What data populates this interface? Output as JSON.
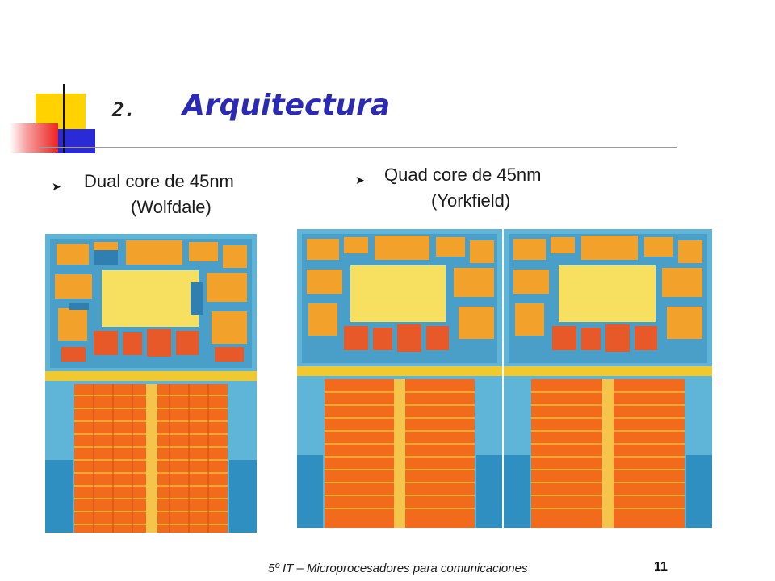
{
  "title": {
    "number": "2.",
    "text": "Arquitectura"
  },
  "bullets": [
    {
      "line1": "Dual core de 45nm",
      "line2": "(Wolfdale)"
    },
    {
      "line1": "Quad core de 45nm",
      "line2": "(Yorkfield)"
    }
  ],
  "images": [
    {
      "name": "Wolfdale dual core die",
      "icon": "die-photo"
    },
    {
      "name": "Yorkfield quad core die",
      "icon": "die-photo"
    }
  ],
  "footer": {
    "text": "5º IT – Microprocesadores para comunicaciones",
    "page": "11"
  },
  "colors": {
    "title": "#2a2ab4",
    "accent_yellow": "#ffd200",
    "accent_blue": "#2b2bd6",
    "accent_red": "#ee2222"
  }
}
